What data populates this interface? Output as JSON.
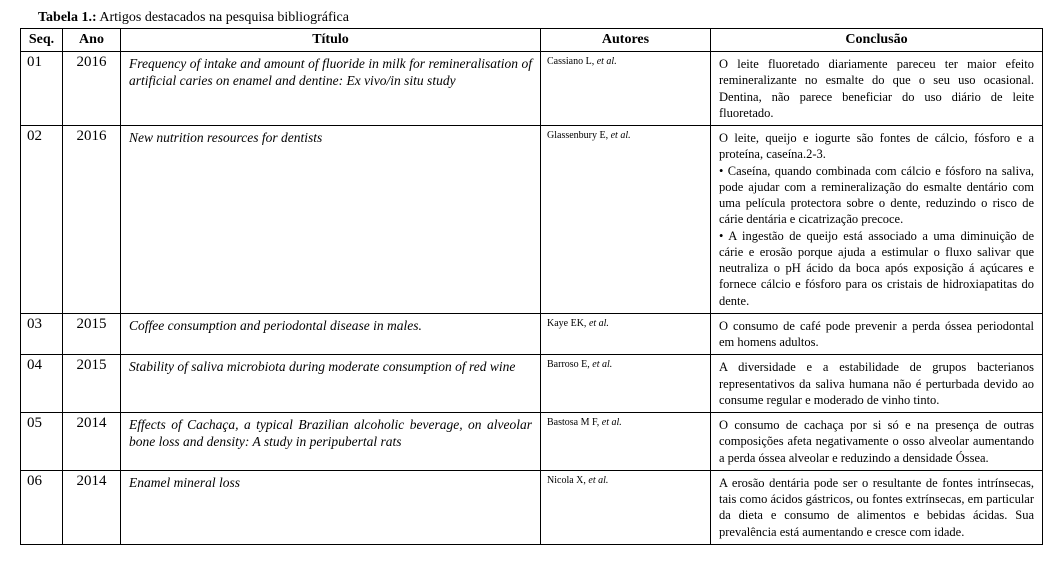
{
  "caption_bold": "Tabela 1.:",
  "caption_rest": " Artigos destacados na pesquisa bibliográfica",
  "headers": {
    "seq": "Seq.",
    "ano": "Ano",
    "titulo": "Título",
    "autores": "Autores",
    "conclusao": "Conclusão"
  },
  "rows": [
    {
      "seq": "01",
      "ano": "2016",
      "titulo": "Frequency of intake and amount of fluoride in milk for remineralisation of artificial caries on enamel and dentine: Ex vivo/in situ study",
      "autor_main": "Cassiano L, ",
      "autor_etal": "et al.",
      "conclusao": "O leite fluoretado diariamente pareceu ter maior efeito remineralizante no esmalte do que o seu uso ocasional. Dentina, não parece beneficiar do uso diário de leite fluoretado."
    },
    {
      "seq": "02",
      "ano": "2016",
      "titulo": "New nutrition resources for dentists",
      "autor_main": "Glassenbury E, ",
      "autor_etal": "et al.",
      "conclusao": "O leite, queijo e iogurte são fontes de cálcio, fósforo e a proteína, caseína.2-3.\n• Caseína, quando combinada com cálcio e fósforo na saliva, pode ajudar com a remineralização do esmalte dentário com uma película protectora sobre o dente, reduzindo o risco de cárie dentária e cicatrização precoce.\n• A ingestão de queijo está associado a uma diminuição de cárie e erosão porque ajuda a estimular o fluxo salivar que neutraliza o pH ácido da boca após exposição á açúcares e fornece cálcio e fósforo para os cristais de hidroxiapatitas do dente."
    },
    {
      "seq": "03",
      "ano": "2015",
      "titulo": "Coffee consumption and periodontal disease in males.",
      "autor_main": "Kaye EK, ",
      "autor_etal": "et al.",
      "conclusao": "O consumo de café pode prevenir a perda óssea periodontal em homens adultos."
    },
    {
      "seq": "04",
      "ano": "2015",
      "titulo": "Stability of saliva microbiota during moderate consumption of red wine",
      "autor_main": "Barroso E, ",
      "autor_etal": "et al.",
      "conclusao": "A diversidade e a estabilidade de grupos bacterianos representativos da saliva humana não é perturbada devido ao consume regular e moderado de vinho tinto."
    },
    {
      "seq": "05",
      "ano": "2014",
      "titulo": "Effects of Cachaça, a typical Brazilian alcoholic beverage, on alveolar bone loss and density: A study in peripubertal rats",
      "autor_main": "Bastosa M F, ",
      "autor_etal": "et al.",
      "conclusao": "O consumo de cachaça por si só e na presença de outras composições afeta negativamente o osso alveolar aumentando a perda óssea alveolar e reduzindo a densidade Óssea."
    },
    {
      "seq": "06",
      "ano": "2014",
      "titulo": "Enamel mineral loss",
      "autor_main": "Nicola X, ",
      "autor_etal": "et al.",
      "conclusao": "A erosão dentária pode ser o resultante de fontes intrínsecas, tais como ácidos gástricos, ou fontes extrínsecas, em particular da dieta e consumo de alimentos e bebidas ácidas. Sua prevalência está aumentando e cresce com idade."
    }
  ]
}
